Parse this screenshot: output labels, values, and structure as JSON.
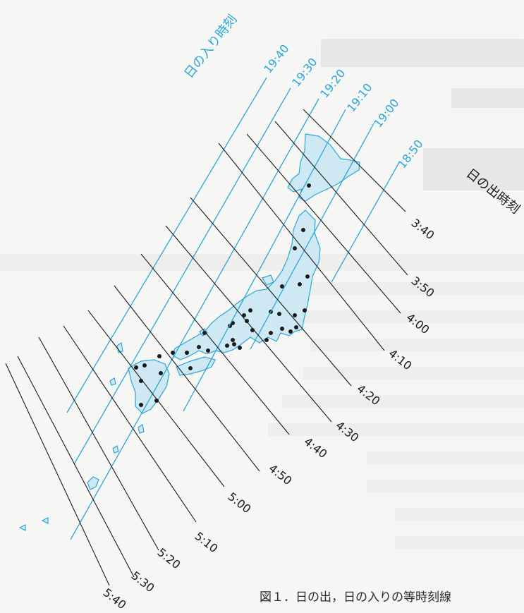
{
  "sunset": {
    "group_label": "日の入り時刻",
    "color": "#2aa7d6",
    "lines": [
      "19:40",
      "19:30",
      "19:20",
      "19:10",
      "19:00",
      "18:50"
    ]
  },
  "sunrise": {
    "group_label": "日の出時刻",
    "color": "#1a1a1a",
    "lines": [
      "3:40",
      "3:50",
      "4:00",
      "4:10",
      "4:20",
      "4:30",
      "4:40",
      "4:50",
      "5:00",
      "5:10",
      "5:20",
      "5:30",
      "5:40"
    ]
  },
  "map": {
    "land_fill": "#cfe9f4",
    "land_stroke": "#2aa7d6",
    "point_color": "#1a1a1a"
  },
  "caption": "図１．日の出，日の入りの等時刻線"
}
